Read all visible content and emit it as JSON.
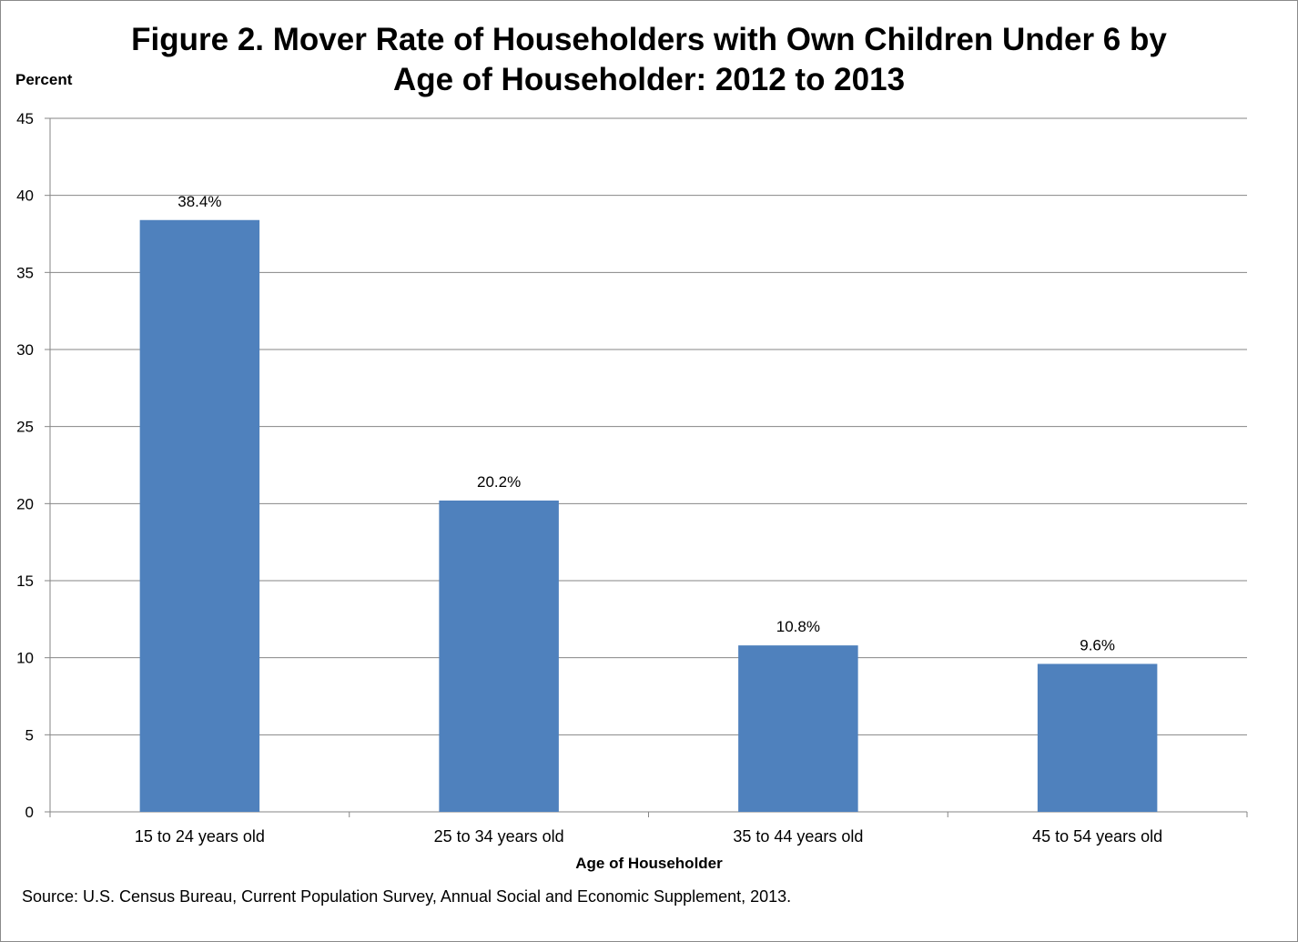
{
  "chart_data": {
    "type": "bar",
    "title": "Figure 2. Mover Rate of Householders with Own Children Under 6 by Age of Householder: 2012 to 2013",
    "title_lines": [
      "Figure 2. Mover Rate of Householders with Own Children Under 6 by",
      "Age of Householder: 2012 to 2013"
    ],
    "ylabel": "Percent",
    "xlabel": "Age of Householder",
    "categories": [
      "15 to 24 years old",
      "25 to 34 years old",
      "35 to 44 years old",
      "45 to 54 years old"
    ],
    "values": [
      38.4,
      20.2,
      10.8,
      9.6
    ],
    "data_labels": [
      "38.4%",
      "20.2%",
      "10.8%",
      "9.6%"
    ],
    "ylim": [
      0,
      45
    ],
    "yticks": [
      0,
      5,
      10,
      15,
      20,
      25,
      30,
      35,
      40,
      45
    ],
    "grid": true,
    "bar_color": "#4F81BD",
    "source": "Source: U.S. Census Bureau, Current Population Survey, Annual Social and Economic Supplement, 2013."
  }
}
